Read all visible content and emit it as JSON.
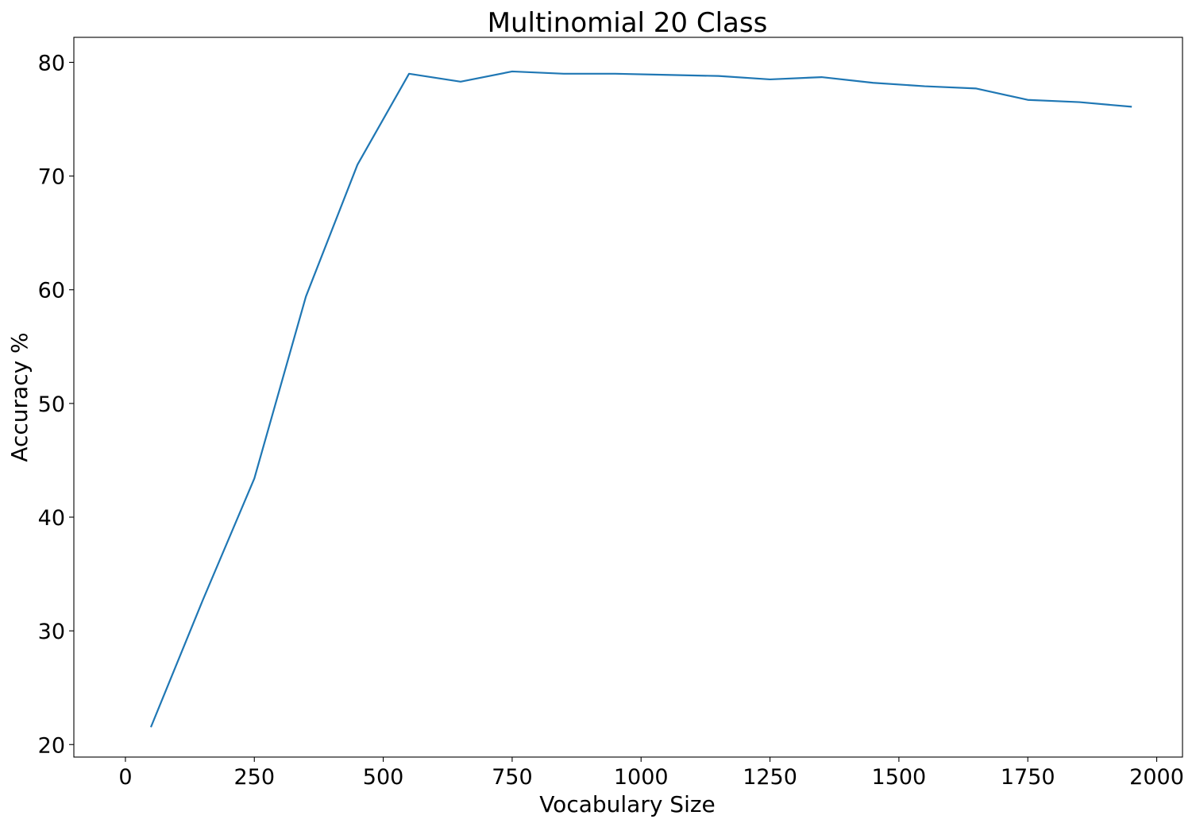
{
  "chart_data": {
    "type": "line",
    "title": "Multinomial 20 Class",
    "xlabel": "Vocabulary Size",
    "ylabel": "Accuracy %",
    "xlim": [
      -100,
      2050
    ],
    "ylim": [
      18.9,
      82.2
    ],
    "xticks": [
      0,
      250,
      500,
      750,
      1000,
      1250,
      1500,
      1750,
      2000
    ],
    "xtick_labels": [
      "0",
      "250",
      "500",
      "750",
      "1000",
      "1250",
      "1500",
      "1750",
      "2000"
    ],
    "yticks": [
      20,
      30,
      40,
      50,
      60,
      70,
      80
    ],
    "ytick_labels": [
      "20",
      "30",
      "40",
      "50",
      "60",
      "70",
      "80"
    ],
    "grid": false,
    "legend": "none",
    "series": [
      {
        "color": "#1f77b4",
        "x": [
          50,
          150,
          250,
          350,
          450,
          550,
          650,
          750,
          850,
          950,
          1050,
          1150,
          1250,
          1350,
          1450,
          1550,
          1650,
          1750,
          1850,
          1950
        ],
        "y": [
          21.6,
          32.7,
          43.4,
          59.4,
          71.0,
          79.0,
          78.3,
          79.2,
          79.0,
          79.0,
          78.9,
          78.8,
          78.5,
          78.7,
          78.2,
          77.9,
          77.7,
          76.7,
          76.5,
          76.1
        ]
      }
    ]
  }
}
